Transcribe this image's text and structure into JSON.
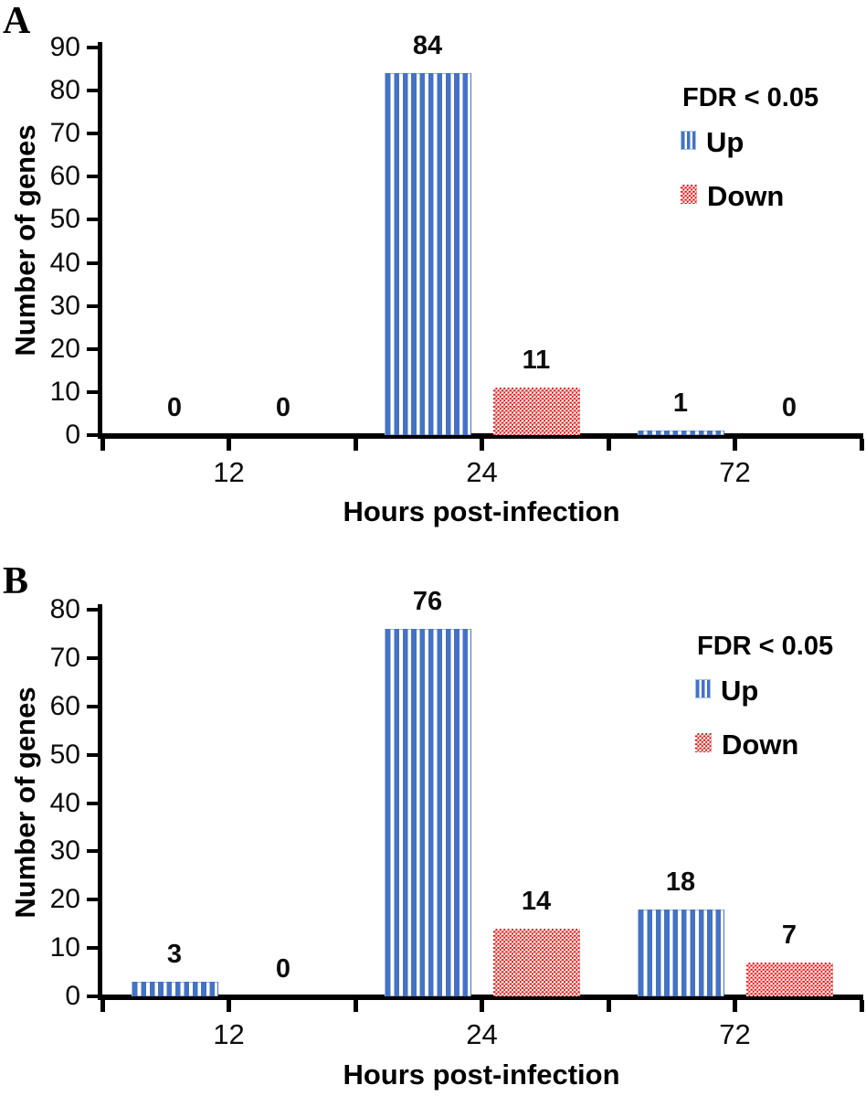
{
  "figure": {
    "panels": [
      "A",
      "B"
    ],
    "colors": {
      "up": "#4472C4",
      "down": "#ED1111",
      "axis": "#000000",
      "up_swatch_border": "#9DC3E6"
    }
  },
  "chart_data": [
    {
      "type": "bar",
      "panel_label": "A",
      "categories": [
        "12",
        "24",
        "72"
      ],
      "series": [
        {
          "name": "Up",
          "values": [
            0,
            84,
            1
          ]
        },
        {
          "name": "Down",
          "values": [
            0,
            11,
            0
          ]
        }
      ],
      "data_labels": [
        [
          "0",
          "84",
          "1"
        ],
        [
          "0",
          "11",
          "0"
        ]
      ],
      "xlabel": "Hours post-infection",
      "ylabel": "Number of genes",
      "ylim": [
        0,
        90
      ],
      "ytick_step": 10,
      "ytick_labels": [
        "90",
        "80",
        "70",
        "60",
        "50",
        "40",
        "30",
        "20",
        "10",
        "0"
      ],
      "legend_title": "FDR < 0.05",
      "legend_entries": [
        "Up",
        "Down"
      ],
      "legend_position": "upper right",
      "grid": false
    },
    {
      "type": "bar",
      "panel_label": "B",
      "categories": [
        "12",
        "24",
        "72"
      ],
      "series": [
        {
          "name": "Up",
          "values": [
            3,
            76,
            18
          ]
        },
        {
          "name": "Down",
          "values": [
            0,
            14,
            7
          ]
        }
      ],
      "data_labels": [
        [
          "3",
          "76",
          "18"
        ],
        [
          "0",
          "14",
          "7"
        ]
      ],
      "xlabel": "Hours post-infection",
      "ylabel": "Number of genes",
      "ylim": [
        0,
        80
      ],
      "ytick_step": 10,
      "ytick_labels": [
        "80",
        "70",
        "60",
        "50",
        "40",
        "30",
        "20",
        "10",
        "0"
      ],
      "legend_title": "FDR < 0.05",
      "legend_entries": [
        "Up",
        "Down"
      ],
      "legend_position": "upper right",
      "grid": false
    }
  ]
}
